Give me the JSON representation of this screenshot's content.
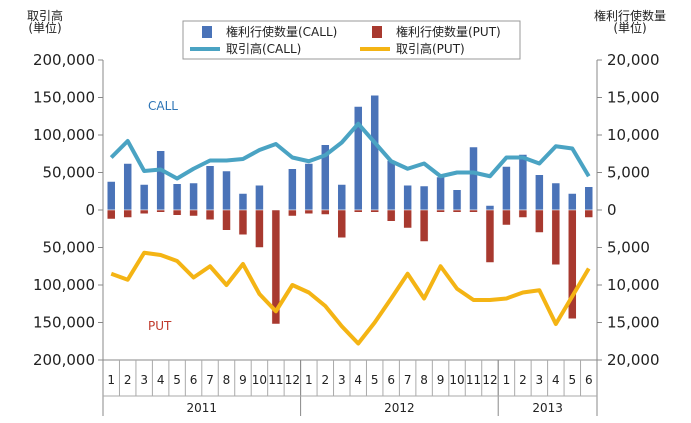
{
  "chart_data": {
    "type": "bar_line",
    "ylabel": "取引高\n(単位)",
    "y2label": "権利行使数量\n(単位)",
    "annotations": [
      {
        "text": "CALL",
        "color": "#2e75b6"
      },
      {
        "text": "PUT",
        "color": "#c0392b"
      }
    ],
    "category_groups": [
      {
        "label": "2011",
        "categories": [
          "1",
          "2",
          "3",
          "4",
          "5",
          "6",
          "7",
          "8",
          "9",
          "10",
          "11",
          "12"
        ]
      },
      {
        "label": "2012",
        "categories": [
          "1",
          "2",
          "3",
          "4",
          "5",
          "6",
          "7",
          "8",
          "9",
          "10",
          "11",
          "12"
        ]
      },
      {
        "label": "2013",
        "categories": [
          "1",
          "2",
          "3",
          "4",
          "5",
          "6"
        ]
      }
    ],
    "ylim": [
      -200000,
      200000
    ],
    "yticks": [
      {
        "value": 200000,
        "label": "200,000"
      },
      {
        "value": 150000,
        "label": "150,000"
      },
      {
        "value": 100000,
        "label": "100,000"
      },
      {
        "value": 50000,
        "label": "50,000"
      },
      0,
      {
        "value": -50000,
        "label": "50,000"
      },
      {
        "value": -100000,
        "label": "100,000"
      },
      {
        "value": -150000,
        "label": "150,000"
      },
      {
        "value": -200000,
        "label": "200,000"
      }
    ],
    "y2lim": [
      -20000,
      20000
    ],
    "y2ticks": [
      {
        "value": 20000,
        "label": "20,000"
      },
      {
        "value": 15000,
        "label": "15,000"
      },
      {
        "value": 10000,
        "label": "10,000"
      },
      {
        "value": 5000,
        "label": "5,000"
      },
      0,
      {
        "value": -5000,
        "label": "5,000"
      },
      {
        "value": -10000,
        "label": "10,000"
      },
      {
        "value": -15000,
        "label": "15,000"
      },
      {
        "value": -20000,
        "label": "20,000"
      }
    ],
    "series": [
      {
        "name": "権利行使数量(CALL)",
        "kind": "bar",
        "axis": "y2",
        "color": "#4a73b8",
        "values": [
          3800,
          6200,
          3400,
          7900,
          3500,
          3600,
          5900,
          5200,
          2200,
          3300,
          0,
          5500,
          6200,
          8700,
          3400,
          13800,
          15300,
          6600,
          3300,
          3200,
          4400,
          2700,
          8400,
          600,
          5800,
          7400,
          4700,
          3600,
          2200,
          3100
        ]
      },
      {
        "name": "権利行使数量(PUT)",
        "kind": "bar",
        "axis": "y2",
        "color": "#a8392f",
        "values": [
          -1200,
          -1000,
          -500,
          -300,
          -700,
          -800,
          -1300,
          -2700,
          -3300,
          -5000,
          -15200,
          -800,
          -500,
          -600,
          -3700,
          -300,
          -300,
          -1500,
          -2400,
          -4200,
          -300,
          -300,
          -300,
          -7000,
          -2000,
          -1000,
          -3000,
          -7300,
          -14500,
          -1000
        ]
      },
      {
        "name": "取引高(CALL)",
        "kind": "line",
        "color": "#4aa3c3",
        "values": [
          70000,
          92000,
          52000,
          54000,
          42000,
          55000,
          66000,
          66000,
          68000,
          80000,
          88000,
          70000,
          65000,
          73000,
          90000,
          115000,
          90000,
          65000,
          55000,
          62000,
          45000,
          50000,
          50000,
          45000,
          70000,
          70000,
          62000,
          85000,
          82000,
          45000
        ]
      },
      {
        "name": "取引高(PUT)",
        "kind": "line",
        "color": "#f4b414",
        "values": [
          -85000,
          -93000,
          -57000,
          -60000,
          -68000,
          -90000,
          -75000,
          -100000,
          -72000,
          -112000,
          -135000,
          -100000,
          -110000,
          -128000,
          -155000,
          -178000,
          -150000,
          -118000,
          -85000,
          -118000,
          -75000,
          -105000,
          -120000,
          -120000,
          -118000,
          -110000,
          -107000,
          -152000,
          -115000,
          -78000
        ]
      }
    ]
  }
}
